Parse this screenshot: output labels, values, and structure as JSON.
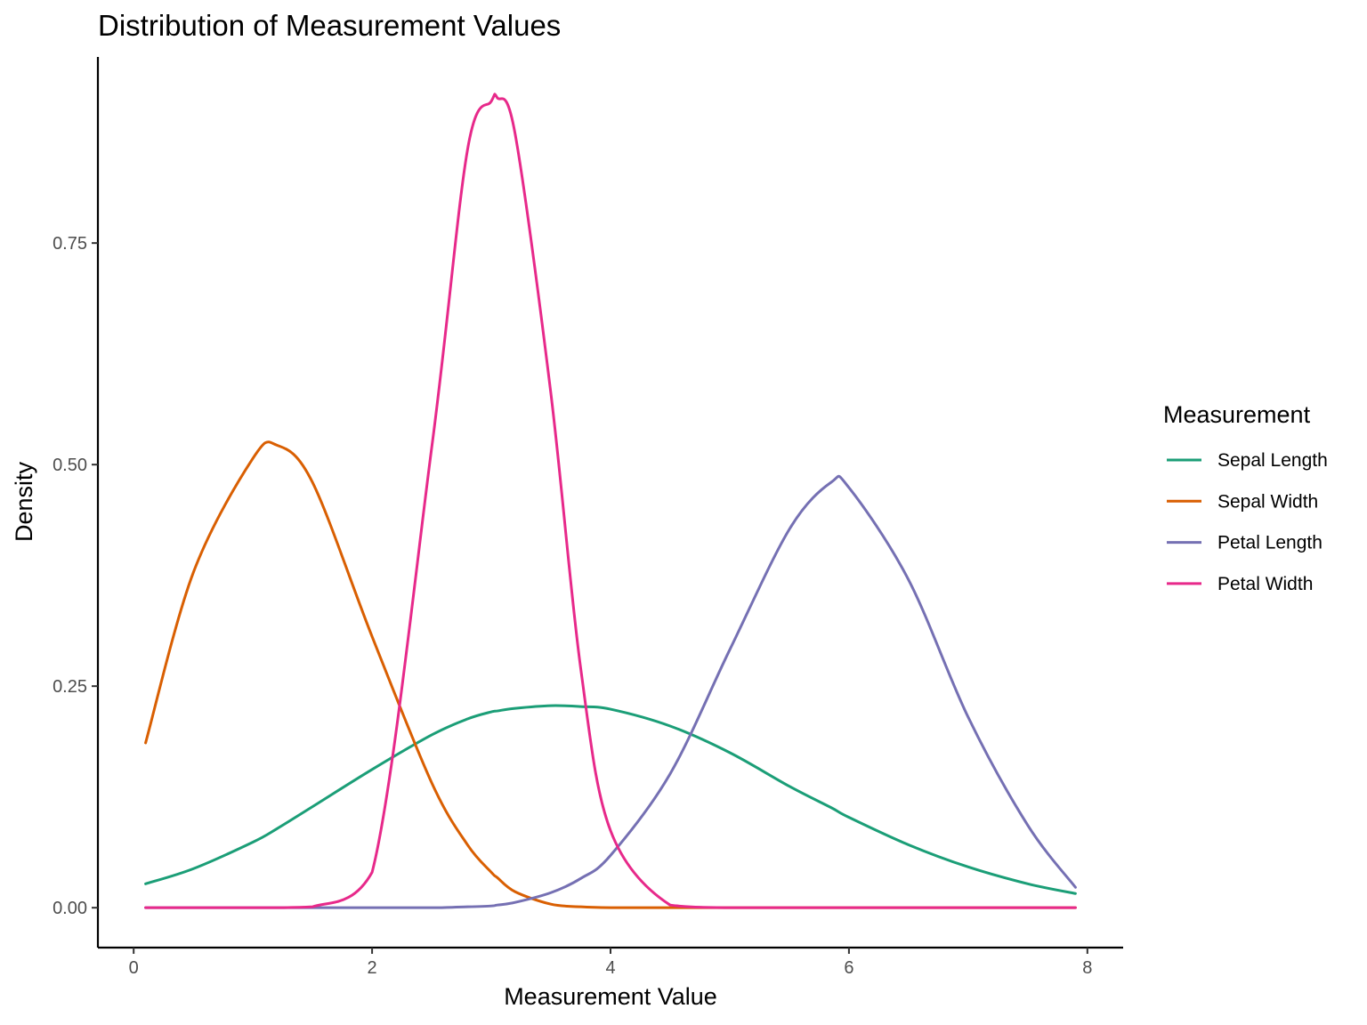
{
  "chart_data": {
    "type": "line",
    "title": "Distribution of Measurement Values",
    "xlabel": "Measurement Value",
    "ylabel": "Density",
    "xlim": [
      -0.3,
      8.3
    ],
    "ylim": [
      -0.045,
      0.96
    ],
    "x_ticks": [
      0,
      2,
      4,
      6,
      8
    ],
    "x_tick_labels": [
      "0",
      "2",
      "4",
      "6",
      "8"
    ],
    "y_ticks": [
      0,
      0.25,
      0.5,
      0.75
    ],
    "y_tick_labels": [
      "0.00",
      "0.25",
      "0.50",
      "0.75"
    ],
    "grid": false,
    "legend": {
      "title": "Measurement",
      "position": "right"
    },
    "x": [
      0.1,
      0.5,
      1.0,
      1.2,
      1.5,
      2.0,
      2.5,
      2.8,
      3.0,
      3.05,
      3.2,
      3.5,
      3.75,
      4.0,
      4.5,
      5.0,
      5.5,
      5.85,
      6.0,
      6.5,
      7.0,
      7.5,
      7.9
    ],
    "series": [
      {
        "name": "Sepal Length",
        "color": "#1b9e77",
        "values": [
          0.027,
          0.044,
          0.074,
          0.089,
          0.114,
          0.156,
          0.195,
          0.213,
          0.221,
          0.222,
          0.225,
          0.228,
          0.227,
          0.224,
          0.205,
          0.175,
          0.137,
          0.113,
          0.102,
          0.071,
          0.046,
          0.027,
          0.016
        ]
      },
      {
        "name": "Sepal Width",
        "color": "#d95f02",
        "values": [
          0.186,
          0.378,
          0.507,
          0.522,
          0.48,
          0.306,
          0.141,
          0.071,
          0.04,
          0.034,
          0.018,
          0.004,
          0.001,
          0.0,
          0.0,
          0.0,
          0.0,
          0.0,
          0.0,
          0.0,
          0.0,
          0.0,
          0.0
        ]
      },
      {
        "name": "Petal Length",
        "color": "#7570b3",
        "values": [
          0.0,
          0.0,
          0.0,
          0.0,
          0.0,
          0.0,
          0.0,
          0.001,
          0.002,
          0.003,
          0.006,
          0.017,
          0.033,
          0.059,
          0.151,
          0.291,
          0.427,
          0.48,
          0.474,
          0.37,
          0.215,
          0.093,
          0.023
        ]
      },
      {
        "name": "Petal Width",
        "color": "#e7298a",
        "values": [
          0.0,
          0.0,
          0.0,
          0.0,
          0.001,
          0.04,
          0.519,
          0.855,
          0.91,
          0.914,
          0.873,
          0.58,
          0.27,
          0.087,
          0.003,
          0.0,
          0.0,
          0.0,
          0.0,
          0.0,
          0.0,
          0.0,
          0.0
        ]
      }
    ]
  }
}
